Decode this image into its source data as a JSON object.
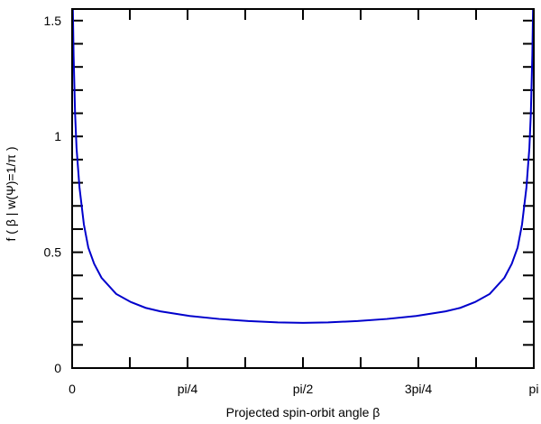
{
  "chart_data": {
    "type": "line",
    "xlabel": "Projected spin-orbit angle β",
    "ylabel": "f ( β | w(Ψ)=1/π )",
    "xlim": [
      0,
      3.14159
    ],
    "ylim": [
      0,
      1.55
    ],
    "xticks": [
      0,
      {
        "value": 0.7854,
        "label": "pi/4"
      },
      {
        "value": 1.5708,
        "label": "pi/2"
      },
      {
        "value": 2.3562,
        "label": "3pi/4"
      },
      {
        "value": 3.14159,
        "label": "pi"
      }
    ],
    "xminor_ticks": [
      0.3927,
      1.1781,
      1.9635,
      2.7489
    ],
    "yticks": [
      0,
      0.5,
      1,
      1.5
    ],
    "yminor_ticks": [
      0.1,
      0.2,
      0.3,
      0.4,
      0.6,
      0.7,
      0.8,
      0.9,
      1.1,
      1.2,
      1.3,
      1.4
    ],
    "series": [
      {
        "color": "#0000cc",
        "x": [
          0.005,
          0.01,
          0.02,
          0.03,
          0.05,
          0.08,
          0.11,
          0.15,
          0.2,
          0.3,
          0.4,
          0.5,
          0.6,
          0.8,
          1.0,
          1.2,
          1.4,
          1.5708,
          1.7416,
          1.9416,
          2.1416,
          2.3416,
          2.5416,
          2.6416,
          2.7416,
          2.8416,
          2.9416,
          2.9916,
          3.0316,
          3.0616,
          3.0916,
          3.1116,
          3.1216,
          3.1316,
          3.1366
        ],
        "values": [
          1.55,
          1.35,
          1.1,
          0.95,
          0.78,
          0.62,
          0.52,
          0.45,
          0.39,
          0.32,
          0.285,
          0.26,
          0.245,
          0.225,
          0.212,
          0.203,
          0.197,
          0.195,
          0.197,
          0.203,
          0.212,
          0.225,
          0.245,
          0.26,
          0.285,
          0.32,
          0.39,
          0.45,
          0.52,
          0.62,
          0.78,
          0.95,
          1.1,
          1.35,
          1.55
        ]
      }
    ]
  }
}
